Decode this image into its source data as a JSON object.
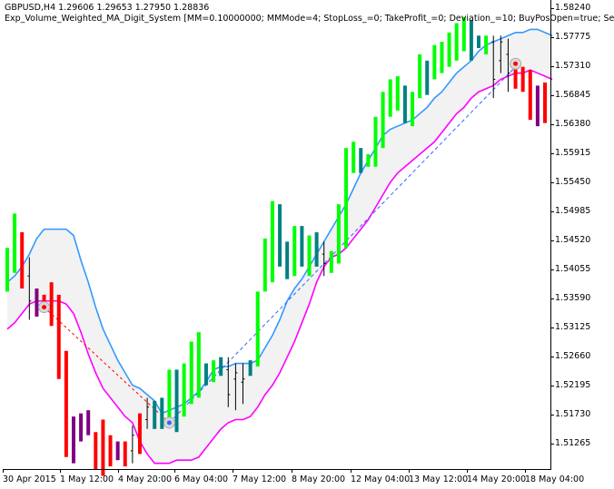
{
  "header": {
    "symbol_line": "GBPUSD,H4  1.29606 1.29653 1.27950 1.28836",
    "expert_line": "Exp_Volume_Weighted_MA_Digit_System [MM=0.10000000; MMMode=4; StopLoss_=0; TakeProfit_=0; Deviation_=10; BuyPosOpen=true; Se"
  },
  "colors": {
    "background": "#ffffff",
    "bull_bar": "#00ff00",
    "bull_bar_dark": "#008080",
    "bear_bar": "#ff0000",
    "bear_bar_dark": "#800080",
    "neutral_bar": "#000000",
    "upper_band": "#3399ff",
    "lower_band": "#ff00ff",
    "band_fill": "#f2f2f2",
    "buy_trade_line": "#3366ff",
    "sell_trade_line": "#ff0000"
  },
  "chart_data": {
    "type": "bar",
    "symbol": "GBPUSD",
    "timeframe": "H4",
    "y_ticks": [
      "1.58240",
      "1.57775",
      "1.57310",
      "1.56845",
      "1.56380",
      "1.55915",
      "1.55450",
      "1.54985",
      "1.54520",
      "1.54055",
      "1.53590",
      "1.53125",
      "1.52660",
      "1.52195",
      "1.51730",
      "1.51265"
    ],
    "ylim": [
      1.509,
      1.5845
    ],
    "x_ticks": [
      "30 Apr 2015",
      "1 May 12:00",
      "4 May 20:00",
      "6 May 04:00",
      "7 May 12:00",
      "8 May 20:00",
      "12 May 04:00",
      "13 May 12:00",
      "14 May 20:00",
      "18 May 04:00"
    ],
    "bars": [
      {
        "o": 1.5408,
        "h": 1.544,
        "l": 1.537,
        "c": 1.5402,
        "color": "bull_bar"
      },
      {
        "o": 1.543,
        "h": 1.5495,
        "l": 1.54,
        "c": 1.549,
        "color": "bull_bar"
      },
      {
        "o": 1.5455,
        "h": 1.5465,
        "l": 1.5375,
        "c": 1.5375,
        "color": "bear_bar"
      },
      {
        "o": 1.5395,
        "h": 1.5425,
        "l": 1.5325,
        "c": 1.5355,
        "color": "neutral_bar"
      },
      {
        "o": 1.536,
        "h": 1.5375,
        "l": 1.533,
        "c": 1.5345,
        "color": "bear_bar_dark"
      },
      {
        "o": 1.535,
        "h": 1.5365,
        "l": 1.534,
        "c": 1.5345,
        "color": "bear_bar"
      },
      {
        "o": 1.538,
        "h": 1.5385,
        "l": 1.5315,
        "c": 1.532,
        "color": "bear_bar"
      },
      {
        "o": 1.5355,
        "h": 1.5365,
        "l": 1.523,
        "c": 1.523,
        "color": "bear_bar"
      },
      {
        "o": 1.527,
        "h": 1.5275,
        "l": 1.5105,
        "c": 1.511,
        "color": "bear_bar"
      },
      {
        "o": 1.5165,
        "h": 1.517,
        "l": 1.5095,
        "c": 1.5105,
        "color": "bear_bar_dark"
      },
      {
        "o": 1.515,
        "h": 1.5175,
        "l": 1.513,
        "c": 1.5145,
        "color": "bear_bar_dark"
      },
      {
        "o": 1.5165,
        "h": 1.518,
        "l": 1.514,
        "c": 1.515,
        "color": "bear_bar_dark"
      },
      {
        "o": 1.514,
        "h": 1.5145,
        "l": 1.5085,
        "c": 1.5095,
        "color": "bear_bar"
      },
      {
        "o": 1.5155,
        "h": 1.5165,
        "l": 1.5075,
        "c": 1.508,
        "color": "bear_bar"
      },
      {
        "o": 1.5125,
        "h": 1.514,
        "l": 1.509,
        "c": 1.5105,
        "color": "bear_bar"
      },
      {
        "o": 1.5125,
        "h": 1.513,
        "l": 1.51,
        "c": 1.511,
        "color": "bear_bar_dark"
      },
      {
        "o": 1.511,
        "h": 1.513,
        "l": 1.509,
        "c": 1.5105,
        "color": "bear_bar"
      },
      {
        "o": 1.5115,
        "h": 1.5155,
        "l": 1.5095,
        "c": 1.514,
        "color": "neutral_bar"
      },
      {
        "o": 1.5125,
        "h": 1.5175,
        "l": 1.511,
        "c": 1.516,
        "color": "bear_bar"
      },
      {
        "o": 1.5165,
        "h": 1.52,
        "l": 1.515,
        "c": 1.5185,
        "color": "neutral_bar"
      },
      {
        "o": 1.517,
        "h": 1.5195,
        "l": 1.515,
        "c": 1.518,
        "color": "bull_bar_dark"
      },
      {
        "o": 1.516,
        "h": 1.52,
        "l": 1.515,
        "c": 1.5165,
        "color": "bull_bar_dark"
      },
      {
        "o": 1.516,
        "h": 1.5245,
        "l": 1.5155,
        "c": 1.523,
        "color": "bull_bar"
      },
      {
        "o": 1.516,
        "h": 1.5245,
        "l": 1.5145,
        "c": 1.5155,
        "color": "bull_bar_dark"
      },
      {
        "o": 1.5185,
        "h": 1.5255,
        "l": 1.517,
        "c": 1.524,
        "color": "bull_bar"
      },
      {
        "o": 1.52,
        "h": 1.529,
        "l": 1.519,
        "c": 1.527,
        "color": "bull_bar"
      },
      {
        "o": 1.5215,
        "h": 1.5305,
        "l": 1.52,
        "c": 1.5295,
        "color": "bull_bar"
      },
      {
        "o": 1.524,
        "h": 1.5255,
        "l": 1.522,
        "c": 1.5235,
        "color": "bull_bar_dark"
      },
      {
        "o": 1.524,
        "h": 1.526,
        "l": 1.5225,
        "c": 1.525,
        "color": "bull_bar"
      },
      {
        "o": 1.5255,
        "h": 1.5265,
        "l": 1.5235,
        "c": 1.524,
        "color": "bull_bar_dark"
      },
      {
        "o": 1.5245,
        "h": 1.5265,
        "l": 1.5185,
        "c": 1.5205,
        "color": "neutral_bar"
      },
      {
        "o": 1.523,
        "h": 1.5255,
        "l": 1.518,
        "c": 1.524,
        "color": "neutral_bar"
      },
      {
        "o": 1.5225,
        "h": 1.5255,
        "l": 1.519,
        "c": 1.523,
        "color": "neutral_bar"
      },
      {
        "o": 1.5245,
        "h": 1.526,
        "l": 1.5235,
        "c": 1.5255,
        "color": "bull_bar_dark"
      },
      {
        "o": 1.526,
        "h": 1.537,
        "l": 1.525,
        "c": 1.5365,
        "color": "bull_bar"
      },
      {
        "o": 1.538,
        "h": 1.5455,
        "l": 1.537,
        "c": 1.5445,
        "color": "bull_bar"
      },
      {
        "o": 1.539,
        "h": 1.5515,
        "l": 1.5385,
        "c": 1.551,
        "color": "bull_bar"
      },
      {
        "o": 1.543,
        "h": 1.551,
        "l": 1.541,
        "c": 1.5495,
        "color": "bull_bar_dark"
      },
      {
        "o": 1.54,
        "h": 1.545,
        "l": 1.539,
        "c": 1.542,
        "color": "bull_bar_dark"
      },
      {
        "o": 1.541,
        "h": 1.5475,
        "l": 1.5395,
        "c": 1.546,
        "color": "bull_bar"
      },
      {
        "o": 1.542,
        "h": 1.5475,
        "l": 1.541,
        "c": 1.543,
        "color": "bull_bar_dark"
      },
      {
        "o": 1.541,
        "h": 1.546,
        "l": 1.5395,
        "c": 1.5455,
        "color": "bull_bar"
      },
      {
        "o": 1.542,
        "h": 1.5465,
        "l": 1.541,
        "c": 1.5455,
        "color": "bull_bar_dark"
      },
      {
        "o": 1.543,
        "h": 1.545,
        "l": 1.5395,
        "c": 1.5415,
        "color": "neutral_bar"
      },
      {
        "o": 1.541,
        "h": 1.5435,
        "l": 1.54,
        "c": 1.542,
        "color": "bull_bar"
      },
      {
        "o": 1.5425,
        "h": 1.551,
        "l": 1.5415,
        "c": 1.55,
        "color": "bull_bar"
      },
      {
        "o": 1.545,
        "h": 1.56,
        "l": 1.544,
        "c": 1.559,
        "color": "bull_bar"
      },
      {
        "o": 1.557,
        "h": 1.561,
        "l": 1.556,
        "c": 1.56,
        "color": "bull_bar"
      },
      {
        "o": 1.558,
        "h": 1.56,
        "l": 1.556,
        "c": 1.5575,
        "color": "bull_bar_dark"
      },
      {
        "o": 1.5575,
        "h": 1.559,
        "l": 1.557,
        "c": 1.5585,
        "color": "bull_bar"
      },
      {
        "o": 1.5575,
        "h": 1.565,
        "l": 1.557,
        "c": 1.5645,
        "color": "bull_bar"
      },
      {
        "o": 1.561,
        "h": 1.569,
        "l": 1.56,
        "c": 1.568,
        "color": "bull_bar"
      },
      {
        "o": 1.566,
        "h": 1.571,
        "l": 1.565,
        "c": 1.57,
        "color": "bull_bar"
      },
      {
        "o": 1.567,
        "h": 1.5715,
        "l": 1.566,
        "c": 1.571,
        "color": "bull_bar"
      },
      {
        "o": 1.565,
        "h": 1.57,
        "l": 1.564,
        "c": 1.5695,
        "color": "bull_bar_dark"
      },
      {
        "o": 1.5645,
        "h": 1.569,
        "l": 1.5635,
        "c": 1.568,
        "color": "bull_bar"
      },
      {
        "o": 1.569,
        "h": 1.575,
        "l": 1.568,
        "c": 1.574,
        "color": "bull_bar"
      },
      {
        "o": 1.5695,
        "h": 1.574,
        "l": 1.5685,
        "c": 1.573,
        "color": "bull_bar_dark"
      },
      {
        "o": 1.572,
        "h": 1.5765,
        "l": 1.571,
        "c": 1.5755,
        "color": "bull_bar"
      },
      {
        "o": 1.5725,
        "h": 1.577,
        "l": 1.572,
        "c": 1.576,
        "color": "bull_bar"
      },
      {
        "o": 1.574,
        "h": 1.5785,
        "l": 1.573,
        "c": 1.5775,
        "color": "bull_bar"
      },
      {
        "o": 1.5745,
        "h": 1.58,
        "l": 1.574,
        "c": 1.5795,
        "color": "bull_bar"
      },
      {
        "o": 1.5765,
        "h": 1.581,
        "l": 1.5755,
        "c": 1.5805,
        "color": "bull_bar"
      },
      {
        "o": 1.575,
        "h": 1.5805,
        "l": 1.574,
        "c": 1.5775,
        "color": "bull_bar_dark"
      },
      {
        "o": 1.5765,
        "h": 1.578,
        "l": 1.576,
        "c": 1.5775,
        "color": "bull_bar_dark"
      },
      {
        "o": 1.576,
        "h": 1.578,
        "l": 1.575,
        "c": 1.577,
        "color": "bull_bar"
      },
      {
        "o": 1.577,
        "h": 1.578,
        "l": 1.568,
        "c": 1.571,
        "color": "neutral_bar"
      },
      {
        "o": 1.574,
        "h": 1.578,
        "l": 1.572,
        "c": 1.577,
        "color": "neutral_bar"
      },
      {
        "o": 1.575,
        "h": 1.5775,
        "l": 1.569,
        "c": 1.572,
        "color": "neutral_bar"
      },
      {
        "o": 1.5735,
        "h": 1.574,
        "l": 1.5695,
        "c": 1.571,
        "color": "bear_bar"
      },
      {
        "o": 1.572,
        "h": 1.573,
        "l": 1.569,
        "c": 1.57,
        "color": "bear_bar"
      },
      {
        "o": 1.5715,
        "h": 1.5725,
        "l": 1.5645,
        "c": 1.565,
        "color": "bear_bar"
      },
      {
        "o": 1.569,
        "h": 1.57,
        "l": 1.5635,
        "c": 1.564,
        "color": "bear_bar_dark"
      },
      {
        "o": 1.569,
        "h": 1.5705,
        "l": 1.564,
        "c": 1.565,
        "color": "bear_bar"
      }
    ],
    "upper_band": [
      1.5385,
      1.5395,
      1.541,
      1.543,
      1.5455,
      1.547,
      1.547,
      1.547,
      1.547,
      1.546,
      1.542,
      1.5385,
      1.5345,
      1.531,
      1.5285,
      1.526,
      1.524,
      1.522,
      1.5215,
      1.5205,
      1.5195,
      1.5175,
      1.518,
      1.5185,
      1.519,
      1.52,
      1.521,
      1.5225,
      1.5245,
      1.525,
      1.525,
      1.5255,
      1.5255,
      1.5255,
      1.526,
      1.528,
      1.53,
      1.5325,
      1.5355,
      1.5375,
      1.539,
      1.541,
      1.543,
      1.545,
      1.547,
      1.549,
      1.551,
      1.5535,
      1.556,
      1.558,
      1.56,
      1.562,
      1.563,
      1.5635,
      1.564,
      1.5645,
      1.5655,
      1.5665,
      1.568,
      1.569,
      1.5705,
      1.572,
      1.573,
      1.574,
      1.5755,
      1.5765,
      1.577,
      1.5775,
      1.578,
      1.5785,
      1.5785,
      1.579,
      1.579,
      1.5785,
      1.578
    ],
    "lower_band": [
      1.531,
      1.532,
      1.5335,
      1.535,
      1.5355,
      1.5355,
      1.5355,
      1.5355,
      1.535,
      1.5335,
      1.5305,
      1.527,
      1.524,
      1.5215,
      1.52,
      1.5185,
      1.517,
      1.516,
      1.513,
      1.511,
      1.5095,
      1.5095,
      1.5095,
      1.51,
      1.51,
      1.51,
      1.5105,
      1.512,
      1.5135,
      1.515,
      1.516,
      1.5165,
      1.5165,
      1.517,
      1.5185,
      1.5205,
      1.522,
      1.524,
      1.5265,
      1.529,
      1.532,
      1.535,
      1.5385,
      1.541,
      1.5425,
      1.543,
      1.544,
      1.5455,
      1.547,
      1.5485,
      1.5505,
      1.5525,
      1.5545,
      1.556,
      1.557,
      1.558,
      1.559,
      1.56,
      1.561,
      1.5625,
      1.564,
      1.5655,
      1.5665,
      1.568,
      1.569,
      1.5695,
      1.57,
      1.571,
      1.5715,
      1.572,
      1.572,
      1.5725,
      1.572,
      1.5715,
      1.571
    ]
  }
}
